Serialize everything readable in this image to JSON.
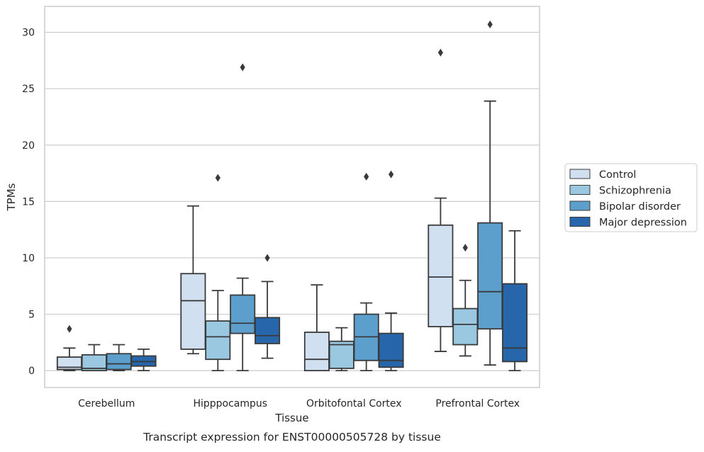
{
  "chart_data": {
    "type": "box",
    "caption": "Transcript expression for ENST00000505728 by tissue",
    "xlabel": "Tissue",
    "ylabel": "TPMs",
    "ylim": [
      -1.5,
      32.3
    ],
    "yticks": [
      0,
      5,
      10,
      15,
      20,
      25,
      30
    ],
    "grid": "horizontal",
    "legend_position": "right",
    "categories": [
      "Cerebellum",
      "Hipppocampus",
      "Orbitofontal Cortex",
      "Prefrontal Cortex"
    ],
    "series": [
      {
        "name": "Control",
        "color": "#d1e0f1",
        "boxes": [
          {
            "whisker_low": 0.0,
            "q1": 0.1,
            "median": 0.3,
            "q3": 1.2,
            "whisker_high": 2.0,
            "outliers": [
              3.7
            ]
          },
          {
            "whisker_low": 1.5,
            "q1": 1.9,
            "median": 6.2,
            "q3": 8.6,
            "whisker_high": 14.6,
            "outliers": []
          },
          {
            "whisker_low": 0.0,
            "q1": 0.0,
            "median": 1.0,
            "q3": 3.4,
            "whisker_high": 7.6,
            "outliers": []
          },
          {
            "whisker_low": 1.7,
            "q1": 3.9,
            "median": 8.3,
            "q3": 12.9,
            "whisker_high": 15.3,
            "outliers": [
              28.2
            ]
          }
        ]
      },
      {
        "name": "Schizophrenia",
        "color": "#9ac8e0",
        "boxes": [
          {
            "whisker_low": 0.0,
            "q1": 0.0,
            "median": 0.2,
            "q3": 1.4,
            "whisker_high": 2.3,
            "outliers": []
          },
          {
            "whisker_low": 0.0,
            "q1": 1.0,
            "median": 3.0,
            "q3": 4.4,
            "whisker_high": 7.1,
            "outliers": [
              17.1
            ]
          },
          {
            "whisker_low": 0.0,
            "q1": 0.2,
            "median": 2.3,
            "q3": 2.6,
            "whisker_high": 3.8,
            "outliers": []
          },
          {
            "whisker_low": 1.3,
            "q1": 2.3,
            "median": 4.1,
            "q3": 5.5,
            "whisker_high": 8.0,
            "outliers": [
              10.9
            ]
          }
        ]
      },
      {
        "name": "Bipolar disorder",
        "color": "#5c9fcc",
        "boxes": [
          {
            "whisker_low": 0.0,
            "q1": 0.1,
            "median": 0.6,
            "q3": 1.5,
            "whisker_high": 2.3,
            "outliers": []
          },
          {
            "whisker_low": 0.0,
            "q1": 3.3,
            "median": 4.2,
            "q3": 6.7,
            "whisker_high": 8.2,
            "outliers": [
              26.9
            ]
          },
          {
            "whisker_low": 0.0,
            "q1": 0.9,
            "median": 3.0,
            "q3": 5.0,
            "whisker_high": 6.0,
            "outliers": [
              17.2
            ]
          },
          {
            "whisker_low": 0.5,
            "q1": 3.7,
            "median": 7.0,
            "q3": 13.1,
            "whisker_high": 23.9,
            "outliers": [
              30.7
            ]
          }
        ]
      },
      {
        "name": "Major depression",
        "color": "#2766aa",
        "boxes": [
          {
            "whisker_low": 0.0,
            "q1": 0.4,
            "median": 0.8,
            "q3": 1.3,
            "whisker_high": 1.9,
            "outliers": []
          },
          {
            "whisker_low": 1.1,
            "q1": 2.4,
            "median": 3.1,
            "q3": 4.7,
            "whisker_high": 7.9,
            "outliers": [
              10.0
            ]
          },
          {
            "whisker_low": 0.0,
            "q1": 0.3,
            "median": 0.9,
            "q3": 3.3,
            "whisker_high": 5.1,
            "outliers": [
              17.4
            ]
          },
          {
            "whisker_low": 0.0,
            "q1": 0.8,
            "median": 2.0,
            "q3": 7.7,
            "whisker_high": 12.4,
            "outliers": []
          }
        ]
      }
    ]
  }
}
